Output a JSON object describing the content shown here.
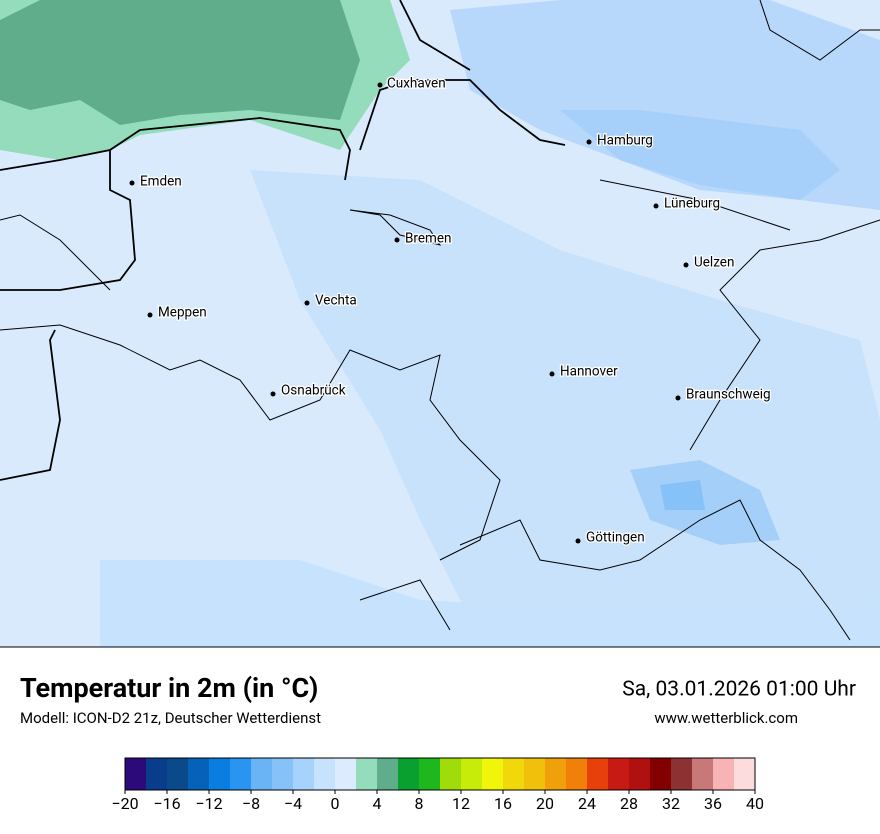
{
  "header": {
    "title": "Temperatur in 2m (in °C)",
    "subtitle": "Modell: ICON-D2 21z, Deutscher Wetterdienst",
    "datetime": "Sa, 03.01.2026 01:00 Uhr",
    "website": "www.wetterblick.com"
  },
  "map": {
    "cities": [
      "Cuxhaven",
      "Hamburg",
      "Emden",
      "Lüneburg",
      "Bremen",
      "Uelzen",
      "Vechta",
      "Meppen",
      "Hannover",
      "Osnabrück",
      "Braunschweig",
      "Göttingen"
    ]
  },
  "colorbar": {
    "ticks": [
      {
        "value": -20,
        "label": "−20"
      },
      {
        "value": -16,
        "label": "−16"
      },
      {
        "value": -12,
        "label": "−12"
      },
      {
        "value": -8,
        "label": "−8"
      },
      {
        "value": -4,
        "label": "−4"
      },
      0,
      4,
      8,
      12,
      16,
      20,
      24,
      28,
      32,
      36,
      40
    ],
    "colors": [
      "#2d0a7a",
      "#0a3c8c",
      "#0a4a8a",
      "#0662b8",
      "#0a7ee0",
      "#2a95f0",
      "#6ab4f5",
      "#86c2f8",
      "#a6d2fb",
      "#c6e2fd",
      "#dcecfe",
      "#94dcbc",
      "#5fad8a",
      "#0aa030",
      "#1eb81e",
      "#a0dc0a",
      "#c8ec0a",
      "#f0f50a",
      "#f0d80a",
      "#f0c00a",
      "#f0a00a",
      "#f0800a",
      "#e8400a",
      "#c81a14",
      "#b01010",
      "#820000",
      "#8c3232",
      "#c87878",
      "#f8b4b4",
      "#fcdcdc"
    ]
  }
}
